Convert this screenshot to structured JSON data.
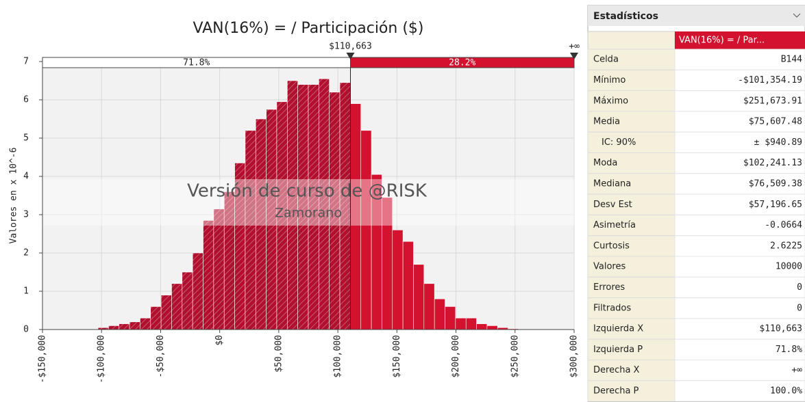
{
  "chart_data": {
    "type": "histogram",
    "title": "VAN(16%) = / Participación ($)",
    "y_label": "Valores en x 10^-6",
    "bins": [
      -103000,
      -94100,
      -85200,
      -76300,
      -67400,
      -58500,
      -49600,
      -40700,
      -31800,
      -22900,
      -14000,
      -5100,
      3800,
      12700,
      21600,
      30500,
      39400,
      48300,
      57200,
      66100,
      75000,
      83900,
      92800,
      101700,
      110600,
      119500,
      128400,
      137300,
      146200,
      155100,
      164000,
      172900,
      181800,
      190700,
      199600,
      208500,
      217400,
      226300,
      235200,
      244100,
      253000
    ],
    "values": [
      0.05,
      0.1,
      0.15,
      0.2,
      0.3,
      0.6,
      0.9,
      1.2,
      1.5,
      2.0,
      2.85,
      3.15,
      3.6,
      4.35,
      5.2,
      5.5,
      5.75,
      5.95,
      6.5,
      6.4,
      6.4,
      6.55,
      6.2,
      6.45,
      5.9,
      5.2,
      4.05,
      3.45,
      2.6,
      2.3,
      1.7,
      1.2,
      0.8,
      0.6,
      0.3,
      0.3,
      0.15,
      0.1,
      0.05,
      0.02
    ],
    "left_color": "#b0102e",
    "right_color": "#d3122f",
    "xlim": [
      -150000,
      300000
    ],
    "xticks": [
      {
        "value": -150000,
        "label": "-$150,000"
      },
      {
        "value": -100000,
        "label": "-$100,000"
      },
      {
        "value": -50000,
        "label": "-$50,000"
      },
      {
        "value": 0,
        "label": "$0"
      },
      {
        "value": 50000,
        "label": "$50,000"
      },
      {
        "value": 100000,
        "label": "$100,000"
      },
      {
        "value": 150000,
        "label": "$150,000"
      },
      {
        "value": 200000,
        "label": "$200,000"
      },
      {
        "value": 250000,
        "label": "$250,000"
      },
      {
        "value": 300000,
        "label": "$300,000"
      }
    ],
    "ylim": [
      0,
      7
    ],
    "yticks": [
      0,
      1,
      2,
      3,
      4,
      5,
      6,
      7
    ],
    "grid": true,
    "delimiter": {
      "value": 110663,
      "label": "$110,663",
      "right_label": "+∞",
      "left_percent": "71.8%",
      "right_percent": "28.2%"
    },
    "watermark": [
      "Versión de curso de @RISK",
      "Zamorano"
    ]
  },
  "table": {
    "title": "Estadísticos",
    "column": "VAN(16%) = / Par...",
    "rows": [
      [
        "Celda",
        "B144"
      ],
      [
        "Mínimo",
        "-$101,354.19"
      ],
      [
        "Máximo",
        "$251,673.91"
      ],
      [
        "Media",
        "$75,607.48"
      ],
      [
        "IC: 90%",
        "± $940.89"
      ],
      [
        "Moda",
        "$102,241.13"
      ],
      [
        "Mediana",
        "$76,509.38"
      ],
      [
        "Desv Est",
        "$57,196.65"
      ],
      [
        "Asimetría",
        "-0.0664"
      ],
      [
        "Curtosis",
        "2.6225"
      ],
      [
        "Valores",
        "10000"
      ],
      [
        "Errores",
        "0"
      ],
      [
        "Filtrados",
        "0"
      ],
      [
        "Izquierda X",
        "$110,663"
      ],
      [
        "Izquierda P",
        "71.8%"
      ],
      [
        "Derecha X",
        "+∞"
      ],
      [
        "Derecha P",
        "100.0%"
      ]
    ]
  }
}
